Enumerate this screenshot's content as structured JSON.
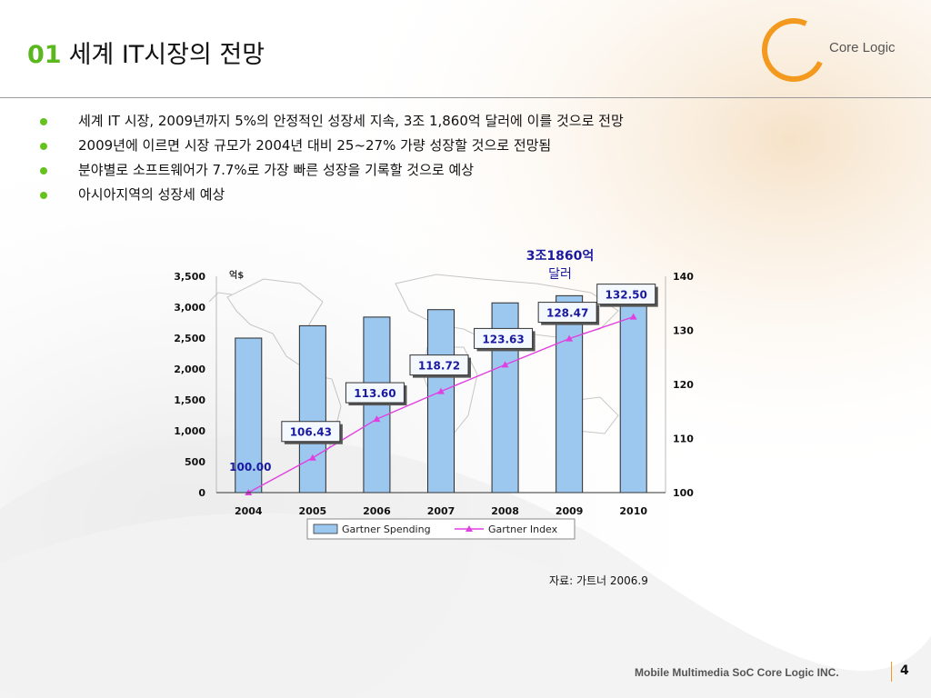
{
  "slide": {
    "number_label": "01",
    "title": "세계 IT시장의 전망",
    "bullets": [
      "세계 IT 시장, 2009년까지 5%의 안정적인 성장세 지속, 3조 1,860억 달러에 이를 것으로 전망",
      "2009년에 이르면 시장 규모가 2004년 대비 25~27% 가량 성장할 것으로 전망됨",
      "분야별로 소프트웨어가 7.7%로 가장 빠른 성장을 기록할 것으로 예상",
      "아시아지역의 성장세 예상"
    ],
    "logo_text": "Core Logic",
    "source_note": "자료: 가트너 2006.9",
    "footer_text": "Mobile Multimedia SoC Core Logic INC.",
    "page_number": "4",
    "colors": {
      "accent_green": "#5ab81e",
      "logo_orange": "#f39a1e",
      "bar_fill": "#9cc8f0",
      "line_color": "#e040e0",
      "callout_blue": "#1a1aa0"
    }
  },
  "chart_data": {
    "type": "bar",
    "categories": [
      "2004",
      "2005",
      "2006",
      "2007",
      "2008",
      "2009",
      "2010"
    ],
    "series": [
      {
        "name": "Gartner Spending",
        "type": "bar",
        "axis": "left",
        "values": [
          2500,
          2700,
          2840,
          2960,
          3070,
          3186,
          3300
        ]
      },
      {
        "name": "Gartner Index",
        "type": "line",
        "axis": "right",
        "values": [
          100.0,
          106.43,
          113.6,
          118.72,
          123.63,
          128.47,
          132.5
        ]
      }
    ],
    "index_labels": [
      "100.00",
      "106.43",
      "113.60",
      "118.72",
      "123.63",
      "128.47",
      "132.50"
    ],
    "left_axis": {
      "ylim": [
        0,
        3500
      ],
      "ticks": [
        "0",
        "500",
        "1,000",
        "1,500",
        "2,000",
        "2,500",
        "3,000",
        "3,500"
      ],
      "unit_label": "억$"
    },
    "right_axis": {
      "ylim": [
        100,
        140
      ],
      "ticks": [
        "100",
        "110",
        "120",
        "130",
        "140"
      ]
    },
    "annotation": {
      "line1": "3조1860억",
      "line2": "달러",
      "category": "2009"
    },
    "legend_placement": "bottom",
    "grid": false
  }
}
